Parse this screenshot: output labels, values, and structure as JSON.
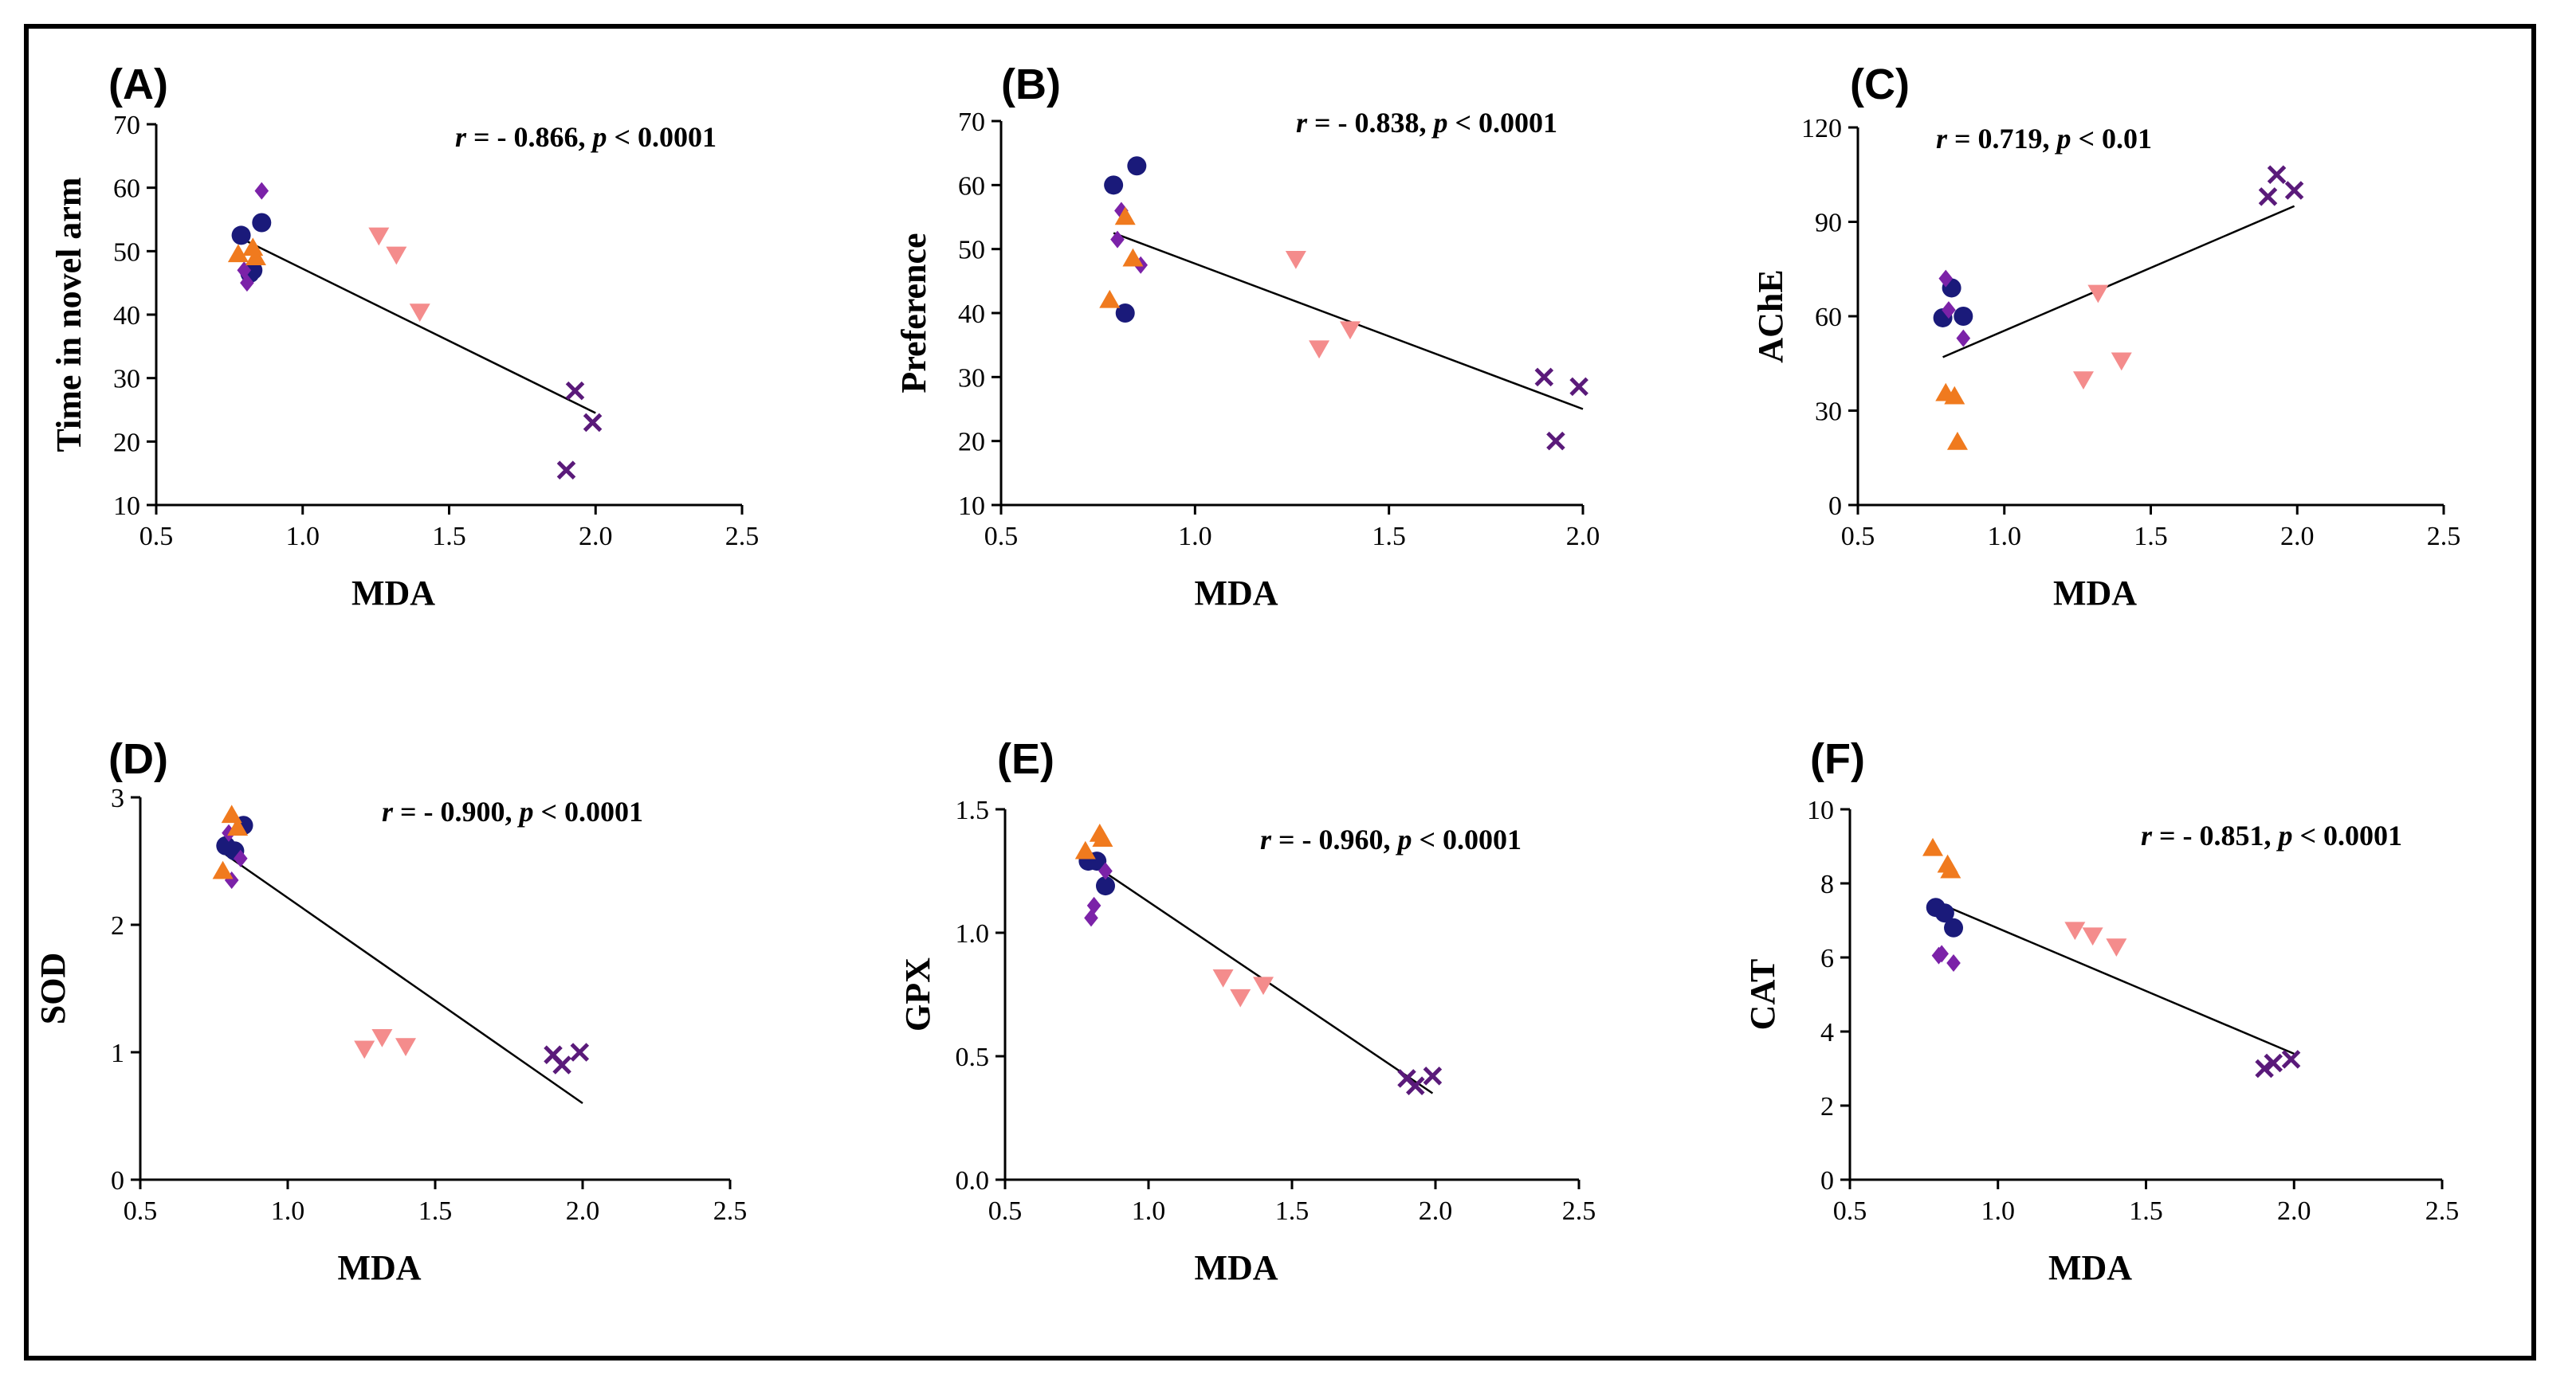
{
  "colors": {
    "circle": "#1a1a7a",
    "diamond": "#7b22a8",
    "triangle_up": "#f07a1e",
    "triangle_down": "#f48c8c",
    "cross": "#5a1a7a"
  },
  "chart_data": [
    {
      "type": "scatter",
      "panel_label": "(A)",
      "stat": {
        "r": "r",
        "r_value": " = - 0.866, ",
        "p": "p",
        "p_value": " < 0.0001"
      },
      "xlabel": "MDA",
      "ylabel": "Time in novel arm",
      "xlim": [
        0.5,
        2.5
      ],
      "ylim": [
        10,
        70
      ],
      "xticks": [
        0.5,
        1.0,
        1.5,
        2.0,
        2.5
      ],
      "xtick_labels": [
        "0.5",
        "1.0",
        "1.5",
        "2.0",
        "2.5"
      ],
      "yticks": [
        10,
        20,
        30,
        40,
        50,
        60,
        70
      ],
      "ytick_labels": [
        "10",
        "20",
        "30",
        "40",
        "50",
        "60",
        "70"
      ],
      "fit_line": [
        [
          0.79,
          52
        ],
        [
          2.0,
          24.5
        ]
      ],
      "series": [
        {
          "marker": "circle",
          "points": [
            [
              0.79,
              52.5
            ],
            [
              0.86,
              54.5
            ],
            [
              0.83,
              47.0
            ],
            [
              0.82,
              46.5
            ]
          ]
        },
        {
          "marker": "diamond",
          "points": [
            [
              0.86,
              59.5
            ],
            [
              0.81,
              45.0
            ],
            [
              0.8,
              47.0
            ]
          ]
        },
        {
          "marker": "triangle_up",
          "points": [
            [
              0.78,
              49.5
            ],
            [
              0.83,
              50.5
            ],
            [
              0.84,
              49.0
            ]
          ]
        },
        {
          "marker": "triangle_down",
          "points": [
            [
              1.26,
              52.5
            ],
            [
              1.32,
              49.5
            ],
            [
              1.4,
              40.5
            ]
          ]
        },
        {
          "marker": "cross",
          "points": [
            [
              1.93,
              28.0
            ],
            [
              1.99,
              23.0
            ],
            [
              1.9,
              15.5
            ]
          ]
        }
      ]
    },
    {
      "type": "scatter",
      "panel_label": "(B)",
      "stat": {
        "r": "r",
        "r_value": " = - 0.838, ",
        "p": "p",
        "p_value": " < 0.0001"
      },
      "xlabel": "MDA",
      "ylabel": "Preference",
      "xlim": [
        0.5,
        2.0
      ],
      "ylim": [
        10,
        70
      ],
      "xticks": [
        0.5,
        1.0,
        1.5,
        2.0
      ],
      "xtick_labels": [
        "0.5",
        "1.0",
        "1.5",
        "2.0"
      ],
      "yticks": [
        10,
        20,
        30,
        40,
        50,
        60,
        70
      ],
      "ytick_labels": [
        "10",
        "20",
        "30",
        "40",
        "50",
        "60",
        "70"
      ],
      "fit_line": [
        [
          0.79,
          52.5
        ],
        [
          2.0,
          25.0
        ]
      ],
      "series": [
        {
          "marker": "circle",
          "points": [
            [
              0.79,
              60.0
            ],
            [
              0.85,
              63.0
            ],
            [
              0.82,
              40.0
            ]
          ]
        },
        {
          "marker": "diamond",
          "points": [
            [
              0.81,
              56.0
            ],
            [
              0.8,
              51.5
            ],
            [
              0.86,
              47.5
            ]
          ]
        },
        {
          "marker": "triangle_up",
          "points": [
            [
              0.82,
              55.0
            ],
            [
              0.84,
              48.5
            ],
            [
              0.78,
              42.0
            ]
          ]
        },
        {
          "marker": "triangle_down",
          "points": [
            [
              1.26,
              48.5
            ],
            [
              1.4,
              37.5
            ],
            [
              1.32,
              34.5
            ]
          ]
        },
        {
          "marker": "cross",
          "points": [
            [
              1.9,
              30.0
            ],
            [
              1.99,
              28.5
            ],
            [
              1.93,
              20.0
            ]
          ]
        }
      ]
    },
    {
      "type": "scatter",
      "panel_label": "(C)",
      "stat": {
        "r": "r",
        "r_value": " = 0.719, ",
        "p": "p",
        "p_value": " < 0.01"
      },
      "xlabel": "MDA",
      "ylabel": "AChE",
      "xlim": [
        0.5,
        2.5
      ],
      "ylim": [
        0,
        120
      ],
      "xticks": [
        0.5,
        1.0,
        1.5,
        2.0,
        2.5
      ],
      "xtick_labels": [
        "0.5",
        "1.0",
        "1.5",
        "2.0",
        "2.5"
      ],
      "yticks": [
        0,
        30,
        60,
        90,
        120
      ],
      "ytick_labels": [
        "0",
        "30",
        "60",
        "90",
        "120"
      ],
      "fit_line": [
        [
          0.79,
          47.0
        ],
        [
          1.99,
          95.0
        ]
      ],
      "series": [
        {
          "marker": "circle",
          "points": [
            [
              0.82,
              69.0
            ],
            [
              0.86,
              60.0
            ],
            [
              0.79,
              59.5
            ]
          ]
        },
        {
          "marker": "diamond",
          "points": [
            [
              0.8,
              72.0
            ],
            [
              0.81,
              62.0
            ],
            [
              0.86,
              53.0
            ]
          ]
        },
        {
          "marker": "triangle_up",
          "points": [
            [
              0.8,
              35.5
            ],
            [
              0.83,
              34.5
            ],
            [
              0.84,
              20.0
            ]
          ]
        },
        {
          "marker": "triangle_down",
          "points": [
            [
              1.32,
              67.5
            ],
            [
              1.4,
              46.0
            ],
            [
              1.27,
              40.0
            ]
          ]
        },
        {
          "marker": "cross",
          "points": [
            [
              1.93,
              105.0
            ],
            [
              1.99,
              100.0
            ],
            [
              1.9,
              98.0
            ]
          ]
        }
      ]
    },
    {
      "type": "scatter",
      "panel_label": "(D)",
      "stat": {
        "r": "r",
        "r_value": " = - 0.900, ",
        "p": "p",
        "p_value": " < 0.0001"
      },
      "xlabel": "MDA",
      "ylabel": "SOD",
      "xlim": [
        0.5,
        2.5
      ],
      "ylim": [
        0,
        3
      ],
      "xticks": [
        0.5,
        1.0,
        1.5,
        2.0,
        2.5
      ],
      "xtick_labels": [
        "0.5",
        "1.0",
        "1.5",
        "2.0",
        "2.5"
      ],
      "yticks": [
        0,
        1,
        2,
        3
      ],
      "ytick_labels": [
        "0",
        "1",
        "2",
        "3"
      ],
      "fit_line": [
        [
          0.79,
          2.55
        ],
        [
          2.0,
          0.6
        ]
      ],
      "series": [
        {
          "marker": "circle",
          "points": [
            [
              0.85,
              2.78
            ],
            [
              0.79,
              2.62
            ],
            [
              0.82,
              2.58
            ]
          ]
        },
        {
          "marker": "diamond",
          "points": [
            [
              0.8,
              2.72
            ],
            [
              0.84,
              2.52
            ],
            [
              0.81,
              2.35
            ]
          ]
        },
        {
          "marker": "triangle_up",
          "points": [
            [
              0.81,
              2.86
            ],
            [
              0.83,
              2.76
            ],
            [
              0.78,
              2.42
            ]
          ]
        },
        {
          "marker": "triangle_down",
          "points": [
            [
              1.32,
              1.12
            ],
            [
              1.4,
              1.05
            ],
            [
              1.26,
              1.03
            ]
          ]
        },
        {
          "marker": "cross",
          "points": [
            [
              1.99,
              1.0
            ],
            [
              1.9,
              0.98
            ],
            [
              1.93,
              0.9
            ]
          ]
        }
      ]
    },
    {
      "type": "scatter",
      "panel_label": "(E)",
      "stat": {
        "r": "r",
        "r_value": " = - 0.960, ",
        "p": "p",
        "p_value": " < 0.0001"
      },
      "xlabel": "MDA",
      "ylabel": "GPX",
      "xlim": [
        0.5,
        2.5
      ],
      "ylim": [
        0.0,
        1.5
      ],
      "xticks": [
        0.5,
        1.0,
        1.5,
        2.0,
        2.5
      ],
      "xtick_labels": [
        "0.5",
        "1.0",
        "1.5",
        "2.0",
        "2.5"
      ],
      "yticks": [
        0.0,
        0.5,
        1.0,
        1.5
      ],
      "ytick_labels": [
        "0.0",
        "0.5",
        "1.0",
        "1.5"
      ],
      "fit_line": [
        [
          0.79,
          1.29
        ],
        [
          1.99,
          0.35
        ]
      ],
      "series": [
        {
          "marker": "circle",
          "points": [
            [
              0.79,
              1.29
            ],
            [
              0.82,
              1.29
            ],
            [
              0.85,
              1.19
            ]
          ]
        },
        {
          "marker": "diamond",
          "points": [
            [
              0.85,
              1.25
            ],
            [
              0.81,
              1.11
            ],
            [
              0.8,
              1.06
            ]
          ]
        },
        {
          "marker": "triangle_up",
          "points": [
            [
              0.83,
              1.4
            ],
            [
              0.84,
              1.38
            ],
            [
              0.78,
              1.33
            ]
          ]
        },
        {
          "marker": "triangle_down",
          "points": [
            [
              1.26,
              0.82
            ],
            [
              1.4,
              0.79
            ],
            [
              1.32,
              0.74
            ]
          ]
        },
        {
          "marker": "cross",
          "points": [
            [
              1.99,
              0.42
            ],
            [
              1.9,
              0.41
            ],
            [
              1.93,
              0.38
            ]
          ]
        }
      ]
    },
    {
      "type": "scatter",
      "panel_label": "(F)",
      "stat": {
        "r": "r",
        "r_value": " = - 0.851, ",
        "p": "p",
        "p_value": " < 0.0001"
      },
      "xlabel": "MDA",
      "ylabel": "CAT",
      "xlim": [
        0.5,
        2.5
      ],
      "ylim": [
        0,
        10
      ],
      "xticks": [
        0.5,
        1.0,
        1.5,
        2.0,
        2.5
      ],
      "xtick_labels": [
        "0.5",
        "1.0",
        "1.5",
        "2.0",
        "2.5"
      ],
      "yticks": [
        0,
        2,
        4,
        6,
        8,
        10
      ],
      "ytick_labels": [
        "0",
        "2",
        "4",
        "6",
        "8",
        "10"
      ],
      "fit_line": [
        [
          0.79,
          7.5
        ],
        [
          2.0,
          3.4
        ]
      ],
      "series": [
        {
          "marker": "circle",
          "points": [
            [
              0.79,
              7.35
            ],
            [
              0.82,
              7.2
            ],
            [
              0.85,
              6.8
            ]
          ]
        },
        {
          "marker": "diamond",
          "points": [
            [
              0.8,
              6.05
            ],
            [
              0.81,
              6.1
            ],
            [
              0.85,
              5.85
            ]
          ]
        },
        {
          "marker": "triangle_up",
          "points": [
            [
              0.78,
              8.95
            ],
            [
              0.83,
              8.5
            ],
            [
              0.84,
              8.35
            ]
          ]
        },
        {
          "marker": "triangle_down",
          "points": [
            [
              1.26,
              6.75
            ],
            [
              1.32,
              6.6
            ],
            [
              1.4,
              6.3
            ]
          ]
        },
        {
          "marker": "cross",
          "points": [
            [
              1.99,
              3.25
            ],
            [
              1.93,
              3.15
            ],
            [
              1.9,
              3.0
            ]
          ]
        }
      ]
    }
  ]
}
